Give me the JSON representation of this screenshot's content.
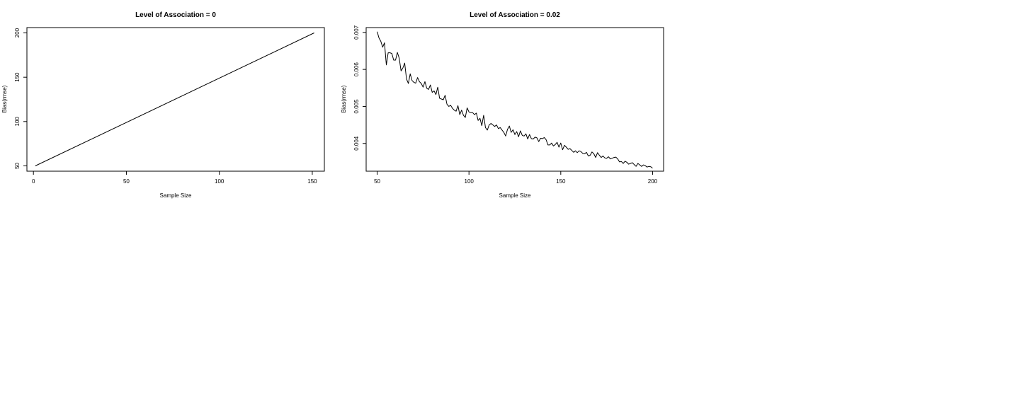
{
  "chart_data": [
    {
      "type": "line",
      "title": "Level of Association = 0",
      "xlabel": "Sample Size",
      "ylabel": "Bias(rmse)",
      "xlim": [
        -3.5,
        156.5
      ],
      "ylim": [
        44,
        206
      ],
      "xticks": [
        0,
        50,
        100,
        150
      ],
      "yticks": [
        50,
        100,
        150,
        200
      ],
      "xtick_labels": [
        "0",
        "50",
        "100",
        "150"
      ],
      "ytick_labels": [
        "50",
        "100",
        "150",
        "200"
      ],
      "grid": false,
      "series": [
        {
          "x": [
            1,
            151
          ],
          "y": [
            50,
            200
          ]
        }
      ]
    },
    {
      "type": "line",
      "title": "Level of Association = 0.02",
      "xlabel": "Sample Size",
      "ylabel": "Bias(rmse)",
      "xlim": [
        44,
        206
      ],
      "ylim": [
        0.00325,
        0.00713
      ],
      "xticks": [
        50,
        100,
        150,
        200
      ],
      "yticks": [
        0.004,
        0.005,
        0.006,
        0.007
      ],
      "xtick_labels": [
        "50",
        "100",
        "150",
        "200"
      ],
      "ytick_labels": [
        "0.004",
        "0.005",
        "0.006",
        "0.007"
      ],
      "grid": false,
      "series": [
        {
          "x": [
            50,
            51,
            52,
            53,
            54,
            55,
            56,
            57,
            58,
            59,
            60,
            61,
            62,
            63,
            64,
            65,
            66,
            67,
            68,
            69,
            70,
            71,
            72,
            73,
            74,
            75,
            76,
            77,
            78,
            79,
            80,
            81,
            82,
            83,
            84,
            85,
            86,
            87,
            88,
            89,
            90,
            91,
            92,
            93,
            94,
            95,
            96,
            97,
            98,
            99,
            100,
            101,
            102,
            103,
            104,
            105,
            106,
            107,
            108,
            109,
            110,
            111,
            112,
            113,
            114,
            115,
            116,
            117,
            118,
            119,
            120,
            121,
            122,
            123,
            124,
            125,
            126,
            127,
            128,
            129,
            130,
            131,
            132,
            133,
            134,
            135,
            136,
            137,
            138,
            139,
            140,
            141,
            142,
            143,
            144,
            145,
            146,
            147,
            148,
            149,
            150,
            151,
            152,
            153,
            154,
            155,
            156,
            157,
            158,
            159,
            160,
            161,
            162,
            163,
            164,
            165,
            166,
            167,
            168,
            169,
            170,
            171,
            172,
            173,
            174,
            175,
            176,
            177,
            178,
            179,
            180,
            181,
            182,
            183,
            184,
            185,
            186,
            187,
            188,
            189,
            190,
            191,
            192,
            193,
            194,
            195,
            196,
            197,
            198,
            199,
            200
          ],
          "y": [
            0.00702,
            0.00685,
            0.00676,
            0.0066,
            0.00672,
            0.00612,
            0.00645,
            0.00645,
            0.00643,
            0.00625,
            0.00625,
            0.00646,
            0.0063,
            0.00596,
            0.00604,
            0.00617,
            0.00574,
            0.00562,
            0.00588,
            0.0057,
            0.00565,
            0.00563,
            0.00578,
            0.00567,
            0.00562,
            0.00552,
            0.00567,
            0.00549,
            0.00546,
            0.00558,
            0.00538,
            0.00542,
            0.00532,
            0.00552,
            0.00522,
            0.0052,
            0.00518,
            0.0053,
            0.00506,
            0.005,
            0.00503,
            0.00495,
            0.0049,
            0.00487,
            0.00502,
            0.00478,
            0.0049,
            0.00476,
            0.0047,
            0.00496,
            0.00485,
            0.00483,
            0.00483,
            0.00478,
            0.00482,
            0.00462,
            0.00468,
            0.00448,
            0.00476,
            0.00443,
            0.00436,
            0.0045,
            0.00454,
            0.0045,
            0.00446,
            0.0045,
            0.0044,
            0.00443,
            0.00436,
            0.0043,
            0.0042,
            0.00438,
            0.00447,
            0.0043,
            0.00437,
            0.00424,
            0.00432,
            0.00418,
            0.00434,
            0.00422,
            0.0042,
            0.00426,
            0.00412,
            0.00424,
            0.00413,
            0.00412,
            0.00417,
            0.00415,
            0.00405,
            0.00414,
            0.00413,
            0.00416,
            0.0041,
            0.00396,
            0.00396,
            0.00401,
            0.00393,
            0.00397,
            0.00403,
            0.0039,
            0.00401,
            0.00383,
            0.00395,
            0.0039,
            0.00384,
            0.00386,
            0.00381,
            0.00376,
            0.0038,
            0.00375,
            0.0038,
            0.00378,
            0.00373,
            0.00372,
            0.00376,
            0.00366,
            0.00368,
            0.00377,
            0.00372,
            0.00362,
            0.00375,
            0.00368,
            0.00362,
            0.00366,
            0.00361,
            0.0036,
            0.00364,
            0.00358,
            0.0036,
            0.00362,
            0.00363,
            0.00358,
            0.0035,
            0.00351,
            0.00346,
            0.00352,
            0.00349,
            0.00344,
            0.00346,
            0.00348,
            0.00343,
            0.00338,
            0.00346,
            0.00342,
            0.00338,
            0.00342,
            0.0034,
            0.00336,
            0.00338,
            0.00337,
            0.00333
          ]
        }
      ]
    }
  ]
}
